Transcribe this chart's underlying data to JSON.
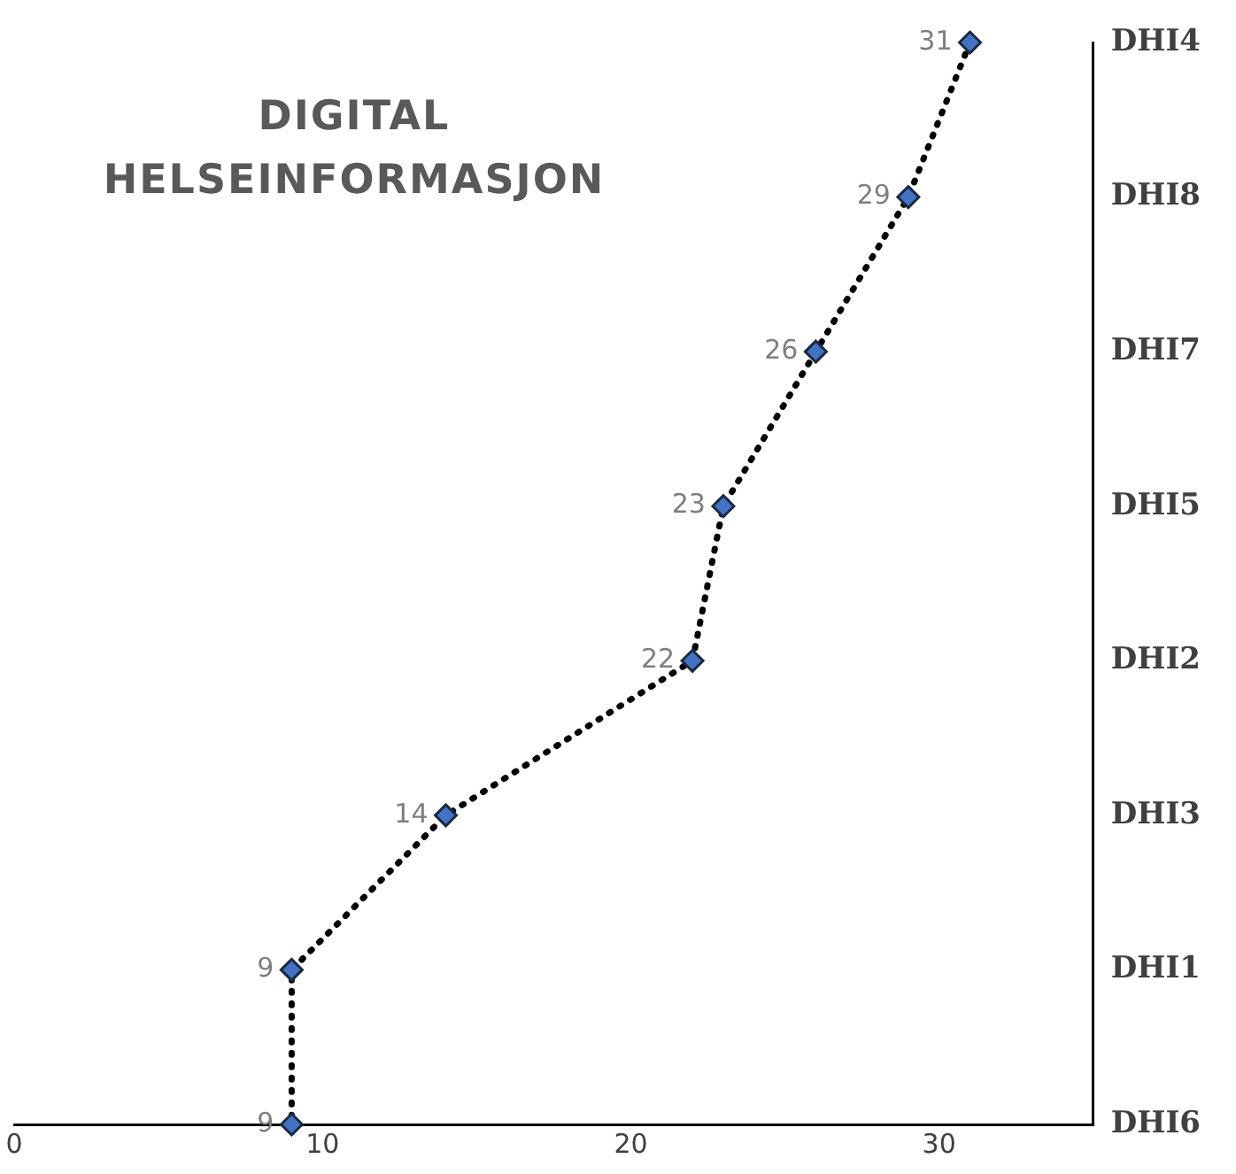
{
  "chart_data": {
    "type": "line",
    "orientation": "horizontal",
    "title": "DIGITAL HELSEINFORMASJON",
    "categories": [
      "DHI4",
      "DHI8",
      "DHI7",
      "DHI5",
      "DHI2",
      "DHI3",
      "DHI1",
      "DHI6"
    ],
    "series": [
      {
        "color": "#4472c4",
        "values": [
          31,
          29,
          26,
          23,
          22,
          14,
          9,
          9
        ]
      }
    ],
    "xlim": [
      0,
      35
    ],
    "xticks": [
      0,
      10,
      20,
      30
    ],
    "marker": "diamond",
    "line_style": "dotted",
    "data_labels": true,
    "grid": false,
    "legend": false
  }
}
